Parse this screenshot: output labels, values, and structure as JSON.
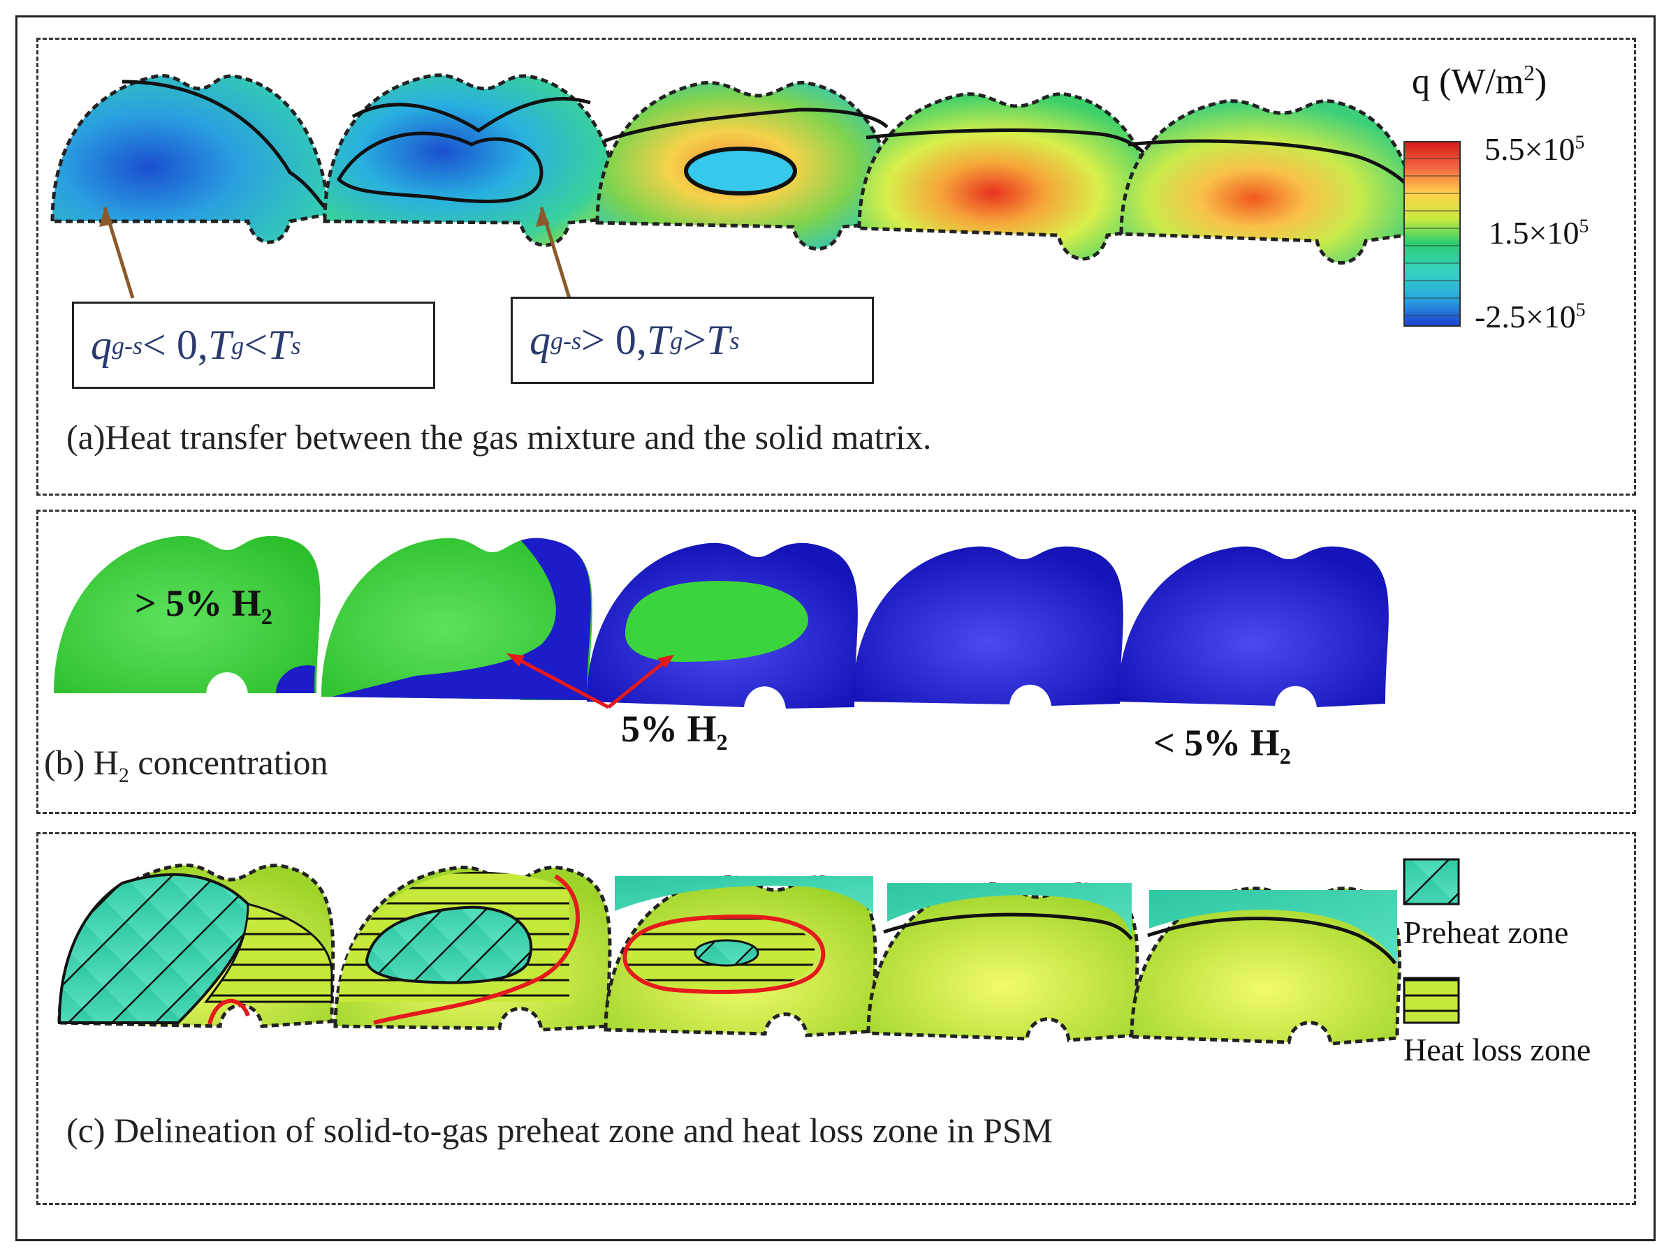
{
  "panel_a": {
    "caption": "(a)Heat transfer between the gas mixture and the solid matrix.",
    "box_left": {
      "q": "q",
      "q_sub": "g-s",
      "rel": " < 0,  ",
      "tg": "T",
      "tg_sub": "g",
      "cmp": " <  ",
      "ts": "T",
      "ts_sub": "s"
    },
    "box_right": {
      "q": "q",
      "q_sub": "g-s",
      "rel": " > 0,  ",
      "tg": "T",
      "tg_sub": "g",
      "cmp": " > ",
      "ts": "T",
      "ts_sub": "s"
    },
    "legend": {
      "title": "q (W/m",
      "title_sup": "2",
      "title_end": ")",
      "ticks": [
        {
          "base": "5.5×10",
          "exp": "5"
        },
        {
          "base": "1.5×10",
          "exp": "5"
        },
        {
          "base": "-2.5×10",
          "exp": "5"
        }
      ],
      "colors": [
        "#d7191c",
        "#f46d43",
        "#fdae61",
        "#fee08b",
        "#d9ef8b",
        "#7fd34e",
        "#2ecc71",
        "#35d3c0",
        "#29a8e0",
        "#1a5fd0"
      ]
    }
  },
  "panel_b": {
    "caption_pre": "(b) H",
    "caption_sub": "2",
    "caption_post": " concentration",
    "label_gt": {
      "text": "> 5% H",
      "sub": "2"
    },
    "label_eq": {
      "text": "5% H",
      "sub": "2"
    },
    "label_lt": {
      "text": "< 5% H",
      "sub": "2"
    },
    "colors": {
      "high": "#3cd43c",
      "low": "#1c1cc8"
    }
  },
  "panel_c": {
    "caption": "(c) Delineation of solid-to-gas preheat zone and heat loss zone in PSM",
    "legend": [
      {
        "label": "Preheat zone",
        "color": "#3fd6a8"
      },
      {
        "label": "Heat loss zone",
        "color": "#b7e64a"
      }
    ]
  }
}
